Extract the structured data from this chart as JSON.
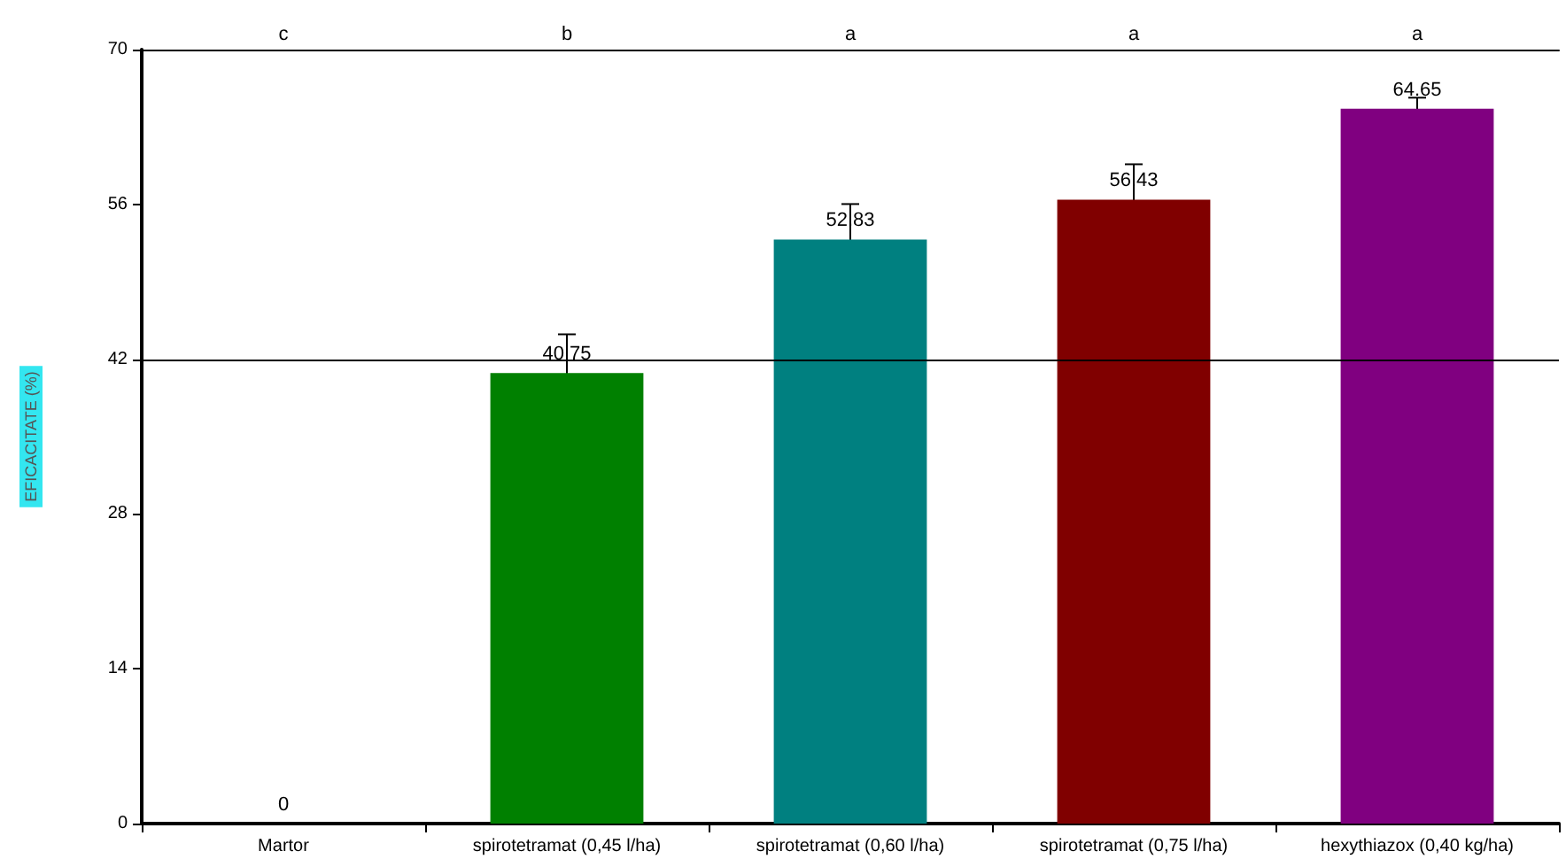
{
  "chart_data": {
    "type": "bar",
    "ylabel": "EFICACITATE (%)",
    "categories": [
      "Martor",
      "spirotetramat (0,45 l/ha)",
      "spirotetramat (0,60 l/ha)",
      "spirotetramat (0,75 l/ha)",
      "hexythiazox (0,40 kg/ha)"
    ],
    "values": [
      0,
      40.75,
      52.83,
      56.43,
      64.65
    ],
    "colors": [
      "#008000",
      "#008000",
      "#008080",
      "#800000",
      "#800080"
    ],
    "errors": [
      null,
      3.5,
      3.2,
      3.2,
      1
    ],
    "data_labels": true,
    "ylim": [
      0,
      70
    ],
    "yticks": [
      0,
      14,
      28,
      42,
      56,
      70
    ],
    "grid": false,
    "ref_lines": [
      {
        "axis": "y",
        "value": 42
      }
    ],
    "annotations": [
      "c",
      "b",
      "a",
      "a",
      "a"
    ]
  }
}
